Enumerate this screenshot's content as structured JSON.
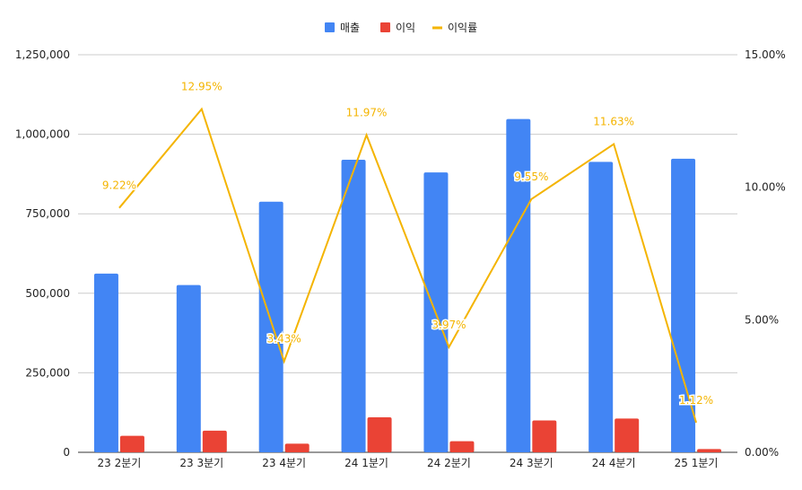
{
  "chart_data": {
    "type": "bar",
    "categories": [
      "23 2분기",
      "23 3분기",
      "23 4분기",
      "24 1분기",
      "24 2분기",
      "24 3분기",
      "24 4분기",
      "25 1분기"
    ],
    "series": [
      {
        "name": "매출",
        "type": "bar",
        "axis": "left",
        "color": "#4285f4",
        "values": [
          562000,
          526000,
          788000,
          920000,
          880000,
          1048000,
          913000,
          923000
        ]
      },
      {
        "name": "이익",
        "type": "bar",
        "axis": "left",
        "color": "#ea4335",
        "values": [
          51800,
          68100,
          27000,
          110100,
          34900,
          100100,
          106200,
          10300
        ]
      },
      {
        "name": "이익률",
        "type": "line",
        "axis": "right",
        "color": "#f4b400",
        "values": [
          9.22,
          12.95,
          3.43,
          11.97,
          3.97,
          9.55,
          11.63,
          1.12
        ],
        "labels": [
          "9.22%",
          "12.95%",
          "3.43%",
          "11.97%",
          "3.97%",
          "9.55%",
          "11.63%",
          "1.12%"
        ]
      }
    ],
    "y_left": {
      "ylim": [
        0,
        1250000
      ],
      "ticks": [
        "0",
        "250,000",
        "500,000",
        "750,000",
        "1,000,000",
        "1,250,000"
      ]
    },
    "y_right": {
      "ylim": [
        0,
        15
      ],
      "ticks": [
        "0.00%",
        "5.00%",
        "10.00%",
        "15.00%"
      ]
    },
    "grid": true,
    "legend": {
      "position": "top-center",
      "entries": [
        "매출",
        "이익",
        "이익률"
      ]
    }
  }
}
